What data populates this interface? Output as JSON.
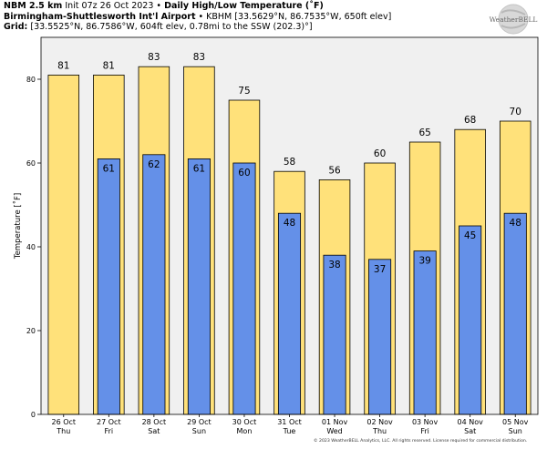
{
  "header": {
    "line1_bold": "NBM 2.5 km",
    "line1_init": "Init 07z 26 Oct 2023",
    "line1_sep": "•",
    "line1_title": "Daily High/Low Temperature (˚F)",
    "line2_station": "Birmingham-Shuttlesworth Int'l Airport",
    "line2_sep": "•",
    "line2_info": "KBHM [33.5629°N, 86.7535°W, 650ft elev]",
    "line3_label": "Grid:",
    "line3_info": "[33.5525°N, 86.7586°W, 604ft elev, 0.78mi to the SSW (202.3)°]"
  },
  "logo_text": "WeatherBELL",
  "copyright": "© 2023 WeatherBELL Analytics, LLC. All rights reserved. License required for commercial distribution.",
  "colors": {
    "high_bar": "#ffe17a",
    "low_bar": "#6490e8",
    "plot_bg": "#f0f0f0",
    "bar_edge": "#000000"
  },
  "chart_data": {
    "type": "bar",
    "ylabel": "Temperature [˚F]",
    "ylim": [
      0,
      90
    ],
    "yticks": [
      0,
      20,
      40,
      60,
      80
    ],
    "categories": [
      [
        "26 Oct",
        "Thu"
      ],
      [
        "27 Oct",
        "Fri"
      ],
      [
        "28 Oct",
        "Sat"
      ],
      [
        "29 Oct",
        "Sun"
      ],
      [
        "30 Oct",
        "Mon"
      ],
      [
        "31 Oct",
        "Tue"
      ],
      [
        "01 Nov",
        "Wed"
      ],
      [
        "02 Nov",
        "Thu"
      ],
      [
        "03 Nov",
        "Fri"
      ],
      [
        "04 Nov",
        "Sat"
      ],
      [
        "05 Nov",
        "Sun"
      ]
    ],
    "series": [
      {
        "key": "high",
        "values": [
          81,
          81,
          83,
          83,
          75,
          58,
          56,
          60,
          65,
          68,
          70
        ]
      },
      {
        "key": "low",
        "values": [
          null,
          61,
          62,
          61,
          60,
          48,
          38,
          37,
          39,
          45,
          48
        ]
      }
    ],
    "grid": false,
    "legend": "none"
  }
}
